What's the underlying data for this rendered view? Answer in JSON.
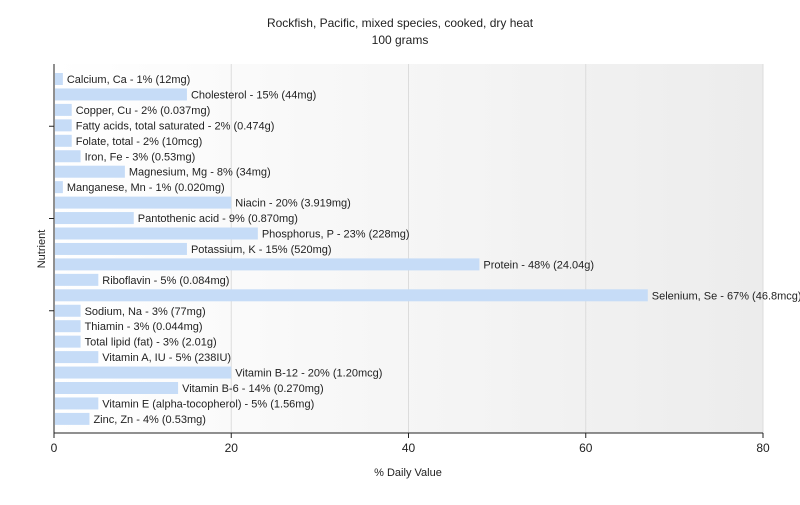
{
  "chart_data": {
    "type": "bar",
    "orientation": "horizontal",
    "title": "Rockfish, Pacific, mixed species, cooked, dry heat",
    "subtitle": "100 grams",
    "xlabel": "% Daily Value",
    "ylabel": "Nutrient",
    "xlim": [
      0,
      80
    ],
    "xticks": [
      0,
      20,
      40,
      60,
      80
    ],
    "grid": true,
    "legend": "none",
    "bar_color": "#c6dcf7",
    "bars": [
      {
        "label": "Calcium, Ca - 1% (12mg)",
        "value": 1
      },
      {
        "label": "Cholesterol - 15% (44mg)",
        "value": 15
      },
      {
        "label": "Copper, Cu - 2% (0.037mg)",
        "value": 2
      },
      {
        "label": "Fatty acids, total saturated - 2% (0.474g)",
        "value": 2
      },
      {
        "label": "Folate, total - 2% (10mcg)",
        "value": 2
      },
      {
        "label": "Iron, Fe - 3% (0.53mg)",
        "value": 3
      },
      {
        "label": "Magnesium, Mg - 8% (34mg)",
        "value": 8
      },
      {
        "label": "Manganese, Mn - 1% (0.020mg)",
        "value": 1
      },
      {
        "label": "Niacin - 20% (3.919mg)",
        "value": 20
      },
      {
        "label": "Pantothenic acid - 9% (0.870mg)",
        "value": 9
      },
      {
        "label": "Phosphorus, P - 23% (228mg)",
        "value": 23
      },
      {
        "label": "Potassium, K - 15% (520mg)",
        "value": 15
      },
      {
        "label": "Protein - 48% (24.04g)",
        "value": 48
      },
      {
        "label": "Riboflavin - 5% (0.084mg)",
        "value": 5
      },
      {
        "label": "Selenium, Se - 67% (46.8mcg)",
        "value": 67
      },
      {
        "label": "Sodium, Na - 3% (77mg)",
        "value": 3
      },
      {
        "label": "Thiamin - 3% (0.044mg)",
        "value": 3
      },
      {
        "label": "Total lipid (fat) - 3% (2.01g)",
        "value": 3
      },
      {
        "label": "Vitamin A, IU - 5% (238IU)",
        "value": 5
      },
      {
        "label": "Vitamin B-12 - 20% (1.20mcg)",
        "value": 20
      },
      {
        "label": "Vitamin B-6 - 14% (0.270mg)",
        "value": 14
      },
      {
        "label": "Vitamin E (alpha-tocopherol) - 5% (1.56mg)",
        "value": 5
      },
      {
        "label": "Zinc, Zn - 4% (0.53mg)",
        "value": 4
      }
    ]
  }
}
